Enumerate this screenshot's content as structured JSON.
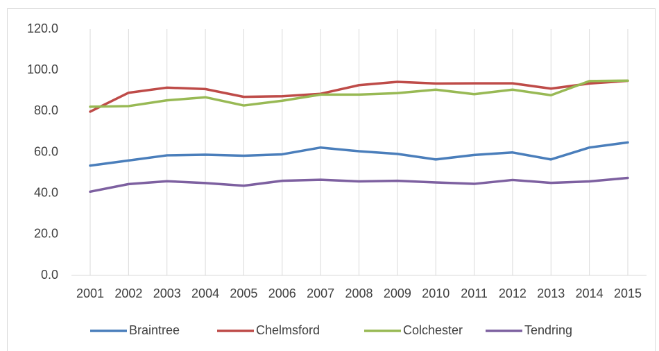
{
  "chart_data": {
    "type": "line",
    "categories": [
      "2001",
      "2002",
      "2003",
      "2004",
      "2005",
      "2006",
      "2007",
      "2008",
      "2009",
      "2010",
      "2011",
      "2012",
      "2013",
      "2014",
      "2015"
    ],
    "series": [
      {
        "name": "Braintree",
        "color": "#4a7ebb",
        "values": [
          53.5,
          56,
          58.5,
          58.8,
          58.3,
          59,
          62.3,
          60.5,
          59.2,
          56.5,
          58.7,
          59.9,
          56.5,
          62.3,
          64.8
        ]
      },
      {
        "name": "Chelmsford",
        "color": "#be4b48",
        "values": [
          79.8,
          89,
          91.5,
          90.8,
          87,
          87.3,
          88.5,
          92.7,
          94.3,
          93.5,
          93.6,
          93.6,
          91,
          93.5,
          94.8
        ]
      },
      {
        "name": "Colchester",
        "color": "#98b954",
        "values": [
          82.2,
          82.5,
          85.3,
          86.8,
          82.8,
          85.1,
          88.1,
          88.1,
          88.8,
          90.5,
          88.3,
          90.5,
          87.8,
          94.7,
          94.9
        ]
      },
      {
        "name": "Tendring",
        "color": "#7d60a0",
        "values": [
          40.8,
          44.5,
          45.9,
          45,
          43.7,
          46.1,
          46.6,
          45.8,
          46.1,
          45.3,
          44.6,
          46.5,
          45.1,
          45.8,
          47.5
        ]
      }
    ],
    "ylim": [
      0,
      120
    ],
    "yticks": [
      {
        "value": 0,
        "label": "0.0"
      },
      {
        "value": 20,
        "label": "20.0"
      },
      {
        "value": 40,
        "label": "40.0"
      },
      {
        "value": 60,
        "label": "60.0"
      },
      {
        "value": 80,
        "label": "80.0"
      },
      {
        "value": 100,
        "label": "100.0"
      },
      {
        "value": 120,
        "label": "120.0"
      }
    ],
    "xgrid": true,
    "legend": "bottom"
  }
}
